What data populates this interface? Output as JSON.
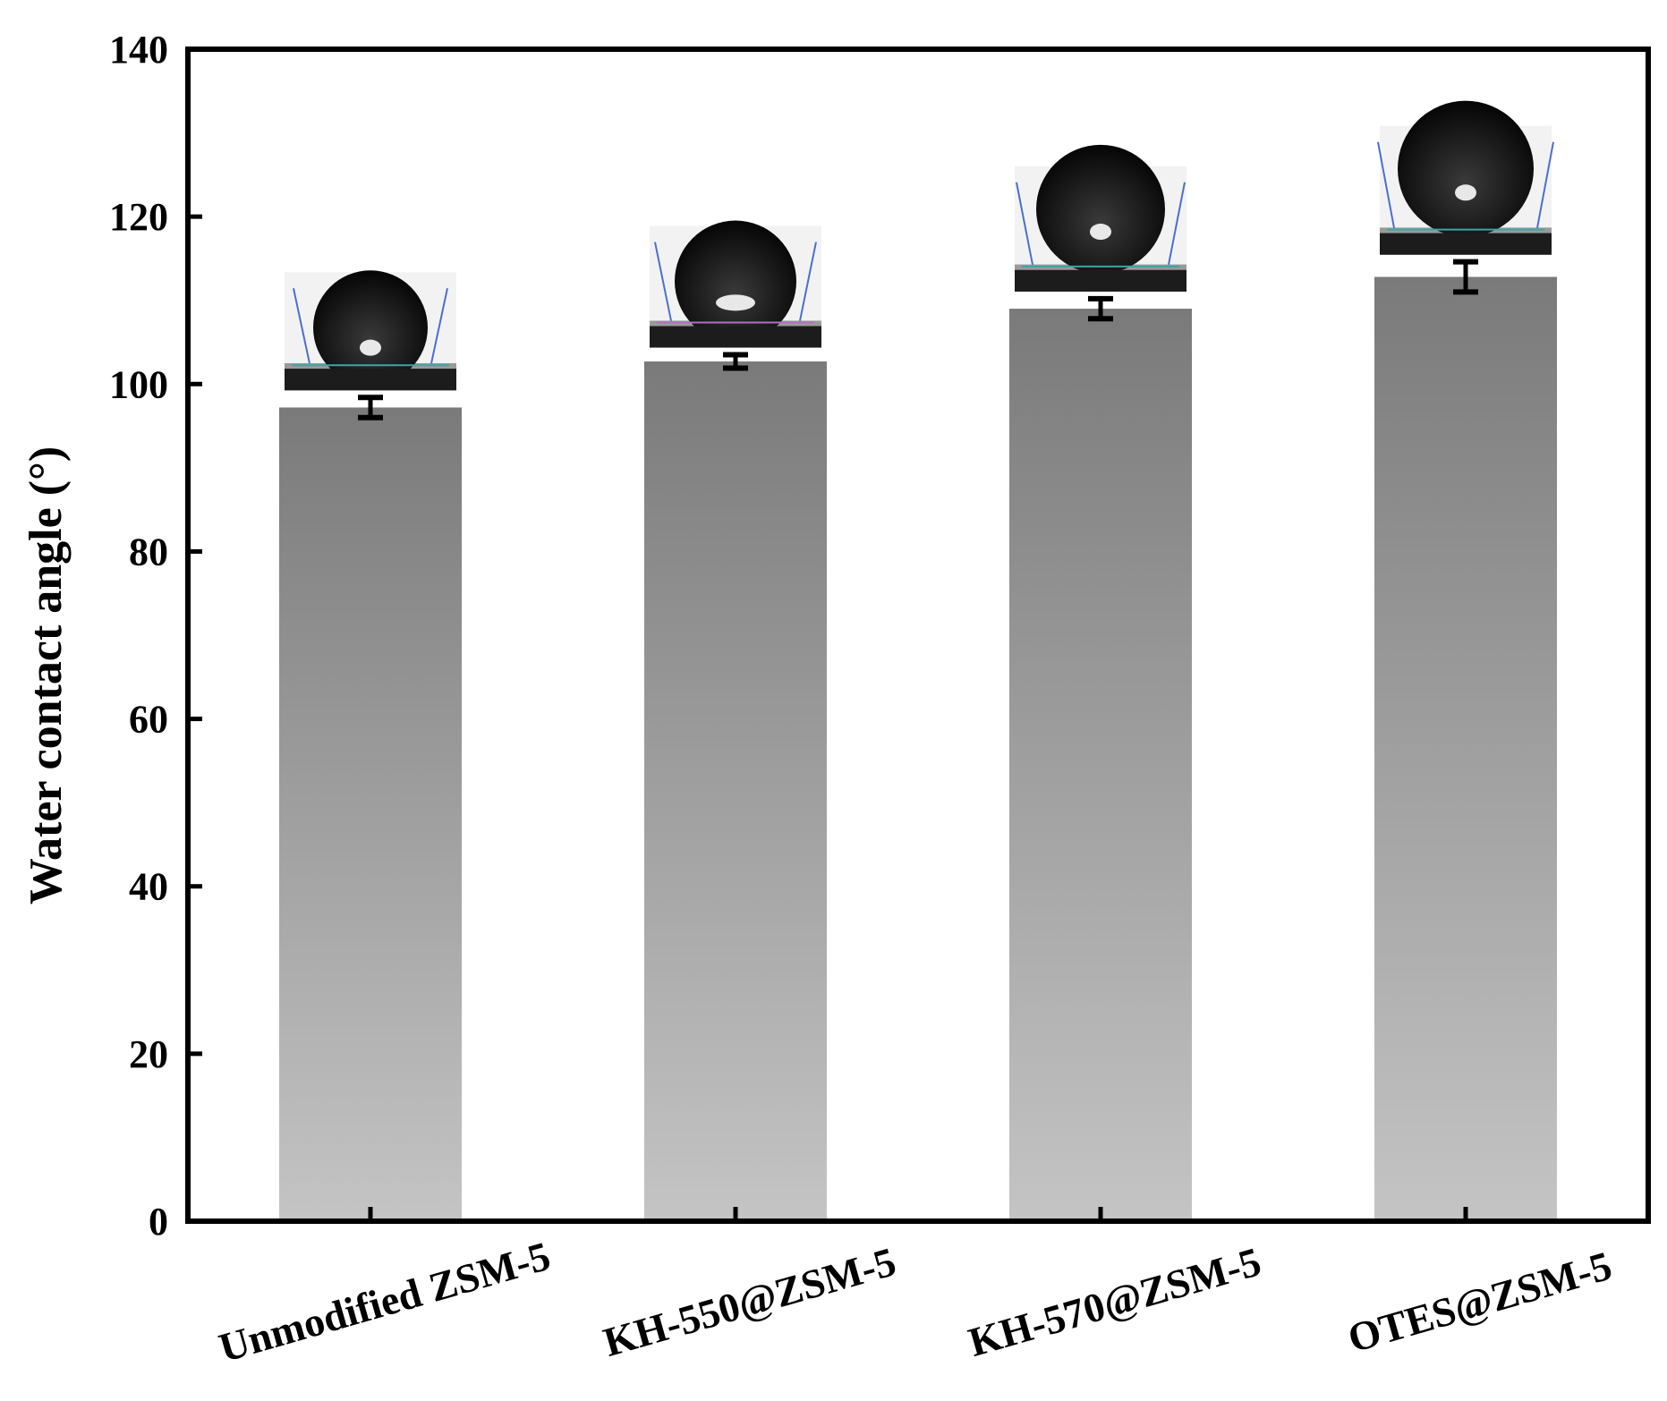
{
  "chart_data": {
    "type": "bar",
    "ylabel": "Water contact angle (°)",
    "xlabel": "",
    "ylim": [
      0,
      140
    ],
    "yticks": [
      0,
      20,
      40,
      60,
      80,
      100,
      120,
      140
    ],
    "categories": [
      "Unmodified ZSM-5",
      "KH-550@ZSM-5",
      "KH-570@ZSM-5",
      "OTES@ZSM-5"
    ],
    "values": [
      97.2,
      102.7,
      109.0,
      112.8
    ],
    "errors": [
      1.2,
      0.8,
      1.2,
      1.8
    ],
    "bar_gradient": [
      "#7a7a7a",
      "#c4c4c4"
    ],
    "grid": false,
    "legend": "none",
    "insets": [
      "water-droplet-image",
      "water-droplet-image",
      "water-droplet-image",
      "water-droplet-image"
    ]
  }
}
